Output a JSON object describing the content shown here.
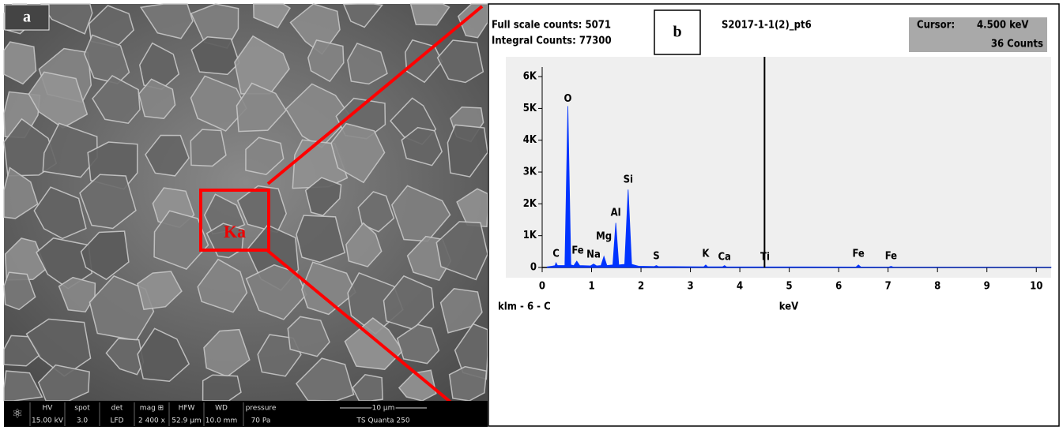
{
  "sem_panel": {
    "label": "a",
    "box_label": "Ka",
    "info_headers": [
      "HV",
      "spot",
      "det",
      "mag ⊞",
      "HFW",
      "WD",
      "pressure"
    ],
    "info_values": [
      "15.00 kV",
      "3.0",
      "LFD",
      "2 400 x",
      "52.9 µm",
      "10.0 mm",
      "70 Pa"
    ],
    "scale_bar": "10 µm",
    "instrument": "TS Quanta 250"
  },
  "chart_data": {
    "type": "area",
    "panel_label": "b",
    "title": "S2017-1-1(2)_pt6",
    "full_scale": "Full scale counts: 5071",
    "integral": "Integral Counts: 77300",
    "cursor_label": "Cursor:",
    "cursor": {
      "value": 4.5,
      "label": "4.500 keV"
    },
    "cursor_counts": "36 Counts",
    "x_label": "keV",
    "footer_label": "klm - 6 - C",
    "color": "#0033ff",
    "x": [
      0.1,
      0.2,
      0.26,
      0.28,
      0.31,
      0.46,
      0.52,
      0.58,
      0.64,
      0.7,
      0.76,
      0.98,
      1.04,
      1.1,
      1.19,
      1.25,
      1.31,
      1.43,
      1.49,
      1.55,
      1.67,
      1.74,
      1.81,
      1.95,
      2.27,
      2.31,
      2.35,
      3.27,
      3.31,
      3.35,
      3.65,
      3.69,
      3.73,
      6.35,
      6.4,
      6.45,
      7.01,
      7.06,
      7.11,
      10.3
    ],
    "values": [
      20,
      40,
      60,
      150,
      60,
      60,
      5071,
      80,
      60,
      200,
      60,
      50,
      110,
      50,
      60,
      350,
      60,
      80,
      1400,
      80,
      100,
      2450,
      100,
      40,
      30,
      60,
      30,
      20,
      80,
      20,
      20,
      60,
      20,
      15,
      80,
      15,
      10,
      35,
      10,
      5
    ],
    "xlim": [
      0,
      10.3
    ],
    "xticks": [
      0,
      1,
      2,
      3,
      4,
      5,
      6,
      7,
      8,
      9,
      10
    ],
    "ylim": [
      0,
      6300
    ],
    "yticks": [
      0,
      {
        "value": 1000,
        "label": "1K"
      },
      {
        "value": 2000,
        "label": "2K"
      },
      {
        "value": 3000,
        "label": "3K"
      },
      {
        "value": 4000,
        "label": "4K"
      },
      {
        "value": 5000,
        "label": "5K"
      },
      {
        "value": 6000,
        "label": "6K"
      }
    ],
    "peak_labels": [
      {
        "text": "C",
        "x": 0.28,
        "y": 420
      },
      {
        "text": "O",
        "x": 0.52,
        "y": 5300
      },
      {
        "text": "Fe",
        "x": 0.72,
        "y": 520
      },
      {
        "text": "Na",
        "x": 1.04,
        "y": 400
      },
      {
        "text": "Mg",
        "x": 1.25,
        "y": 970
      },
      {
        "text": "Al",
        "x": 1.49,
        "y": 1710
      },
      {
        "text": "Si",
        "x": 1.74,
        "y": 2750
      },
      {
        "text": "S",
        "x": 2.31,
        "y": 350
      },
      {
        "text": "K",
        "x": 3.31,
        "y": 420
      },
      {
        "text": "Ca",
        "x": 3.69,
        "y": 320
      },
      {
        "text": "Ti",
        "x": 4.51,
        "y": 320
      },
      {
        "text": "Fe",
        "x": 6.4,
        "y": 420
      },
      {
        "text": "Fe",
        "x": 7.06,
        "y": 350
      }
    ]
  }
}
